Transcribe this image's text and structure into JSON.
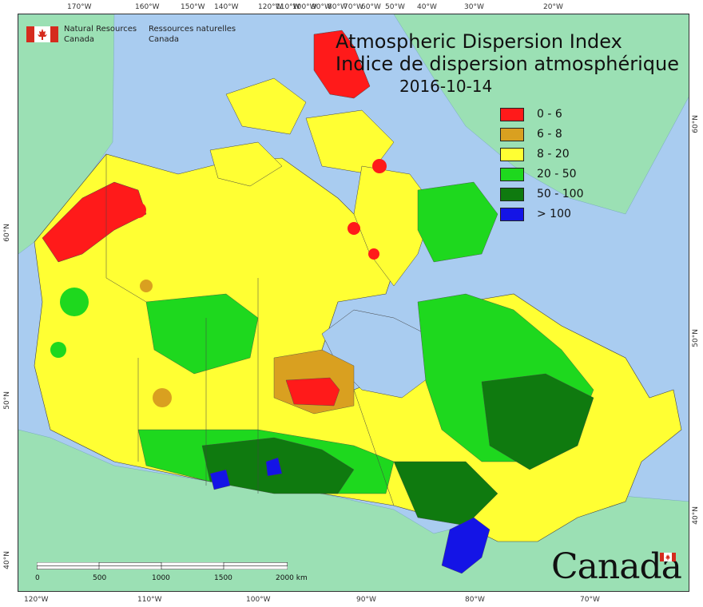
{
  "map": {
    "title_en": "Atmospheric Dispersion Index",
    "title_fr": "Indice de dispersion atmosphérique",
    "date": "2016-10-14"
  },
  "organization": {
    "name_en_line1": "Natural Resources",
    "name_en_line2": "Canada",
    "name_fr_line1": "Ressources naturelles",
    "name_fr_line2": "Canada"
  },
  "legend": {
    "items": [
      {
        "label": "0 - 6",
        "color": "#ff1a1a"
      },
      {
        "label": "6 - 8",
        "color": "#d9a020"
      },
      {
        "label": "8 - 20",
        "color": "#ffff33"
      },
      {
        "label": "20 - 50",
        "color": "#1ed81e"
      },
      {
        "label": "50 - 100",
        "color": "#0f7a0f"
      },
      {
        "label": "> 100",
        "color": "#1414e6"
      }
    ]
  },
  "colors": {
    "ocean": "#a9ccf0",
    "foreign_land": "#9be0b4",
    "border": "#333333"
  },
  "graticule": {
    "top_labels": [
      "170°W",
      "160°W",
      "150°W",
      "140°W",
      "120°W",
      "110°W",
      "100°W",
      "90°W",
      "80°W",
      "70°W",
      "60°W",
      "50°W",
      "40°W",
      "30°W",
      "20°W"
    ],
    "bottom_labels": [
      "120°W",
      "110°W",
      "100°W",
      "90°W",
      "80°W",
      "70°W"
    ],
    "left_labels": [
      "60°N",
      "50°N",
      "40°N"
    ],
    "right_labels": [
      "60°N",
      "50°N",
      "40°N"
    ]
  },
  "scale_bar": {
    "labels": [
      "0",
      "500",
      "1000",
      "1500",
      "2000 km"
    ]
  },
  "wordmark": "Canada"
}
